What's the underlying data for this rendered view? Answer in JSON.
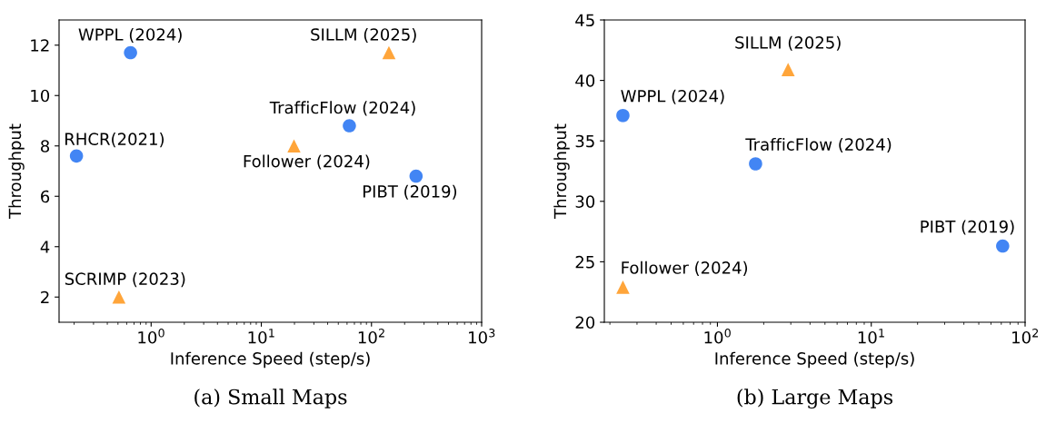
{
  "chart_data": [
    {
      "type": "scatter",
      "title": "(a) Small Maps",
      "xlabel": "Inference Speed (step/s)",
      "ylabel": "Throughput",
      "log": "x",
      "xlim": [
        0.146,
        1000
      ],
      "ylim": [
        1,
        13
      ],
      "xticks": [
        {
          "value": 1,
          "label": "10$^{0}$"
        },
        {
          "value": 10,
          "label": "10$^{1}$"
        },
        {
          "value": 100,
          "label": "10$^{2}$"
        },
        {
          "value": 1000,
          "label": "10$^{3}$"
        }
      ],
      "yticks": [
        2,
        4,
        6,
        8,
        10,
        12
      ],
      "series": [
        {
          "color": "#4285f4",
          "marker": "circle",
          "x": [
            0.21,
            0.65,
            63,
            254
          ],
          "values": [
            7.6,
            11.7,
            8.8,
            6.8
          ]
        },
        {
          "color": "#ffa53a",
          "marker": "triangle",
          "x": [
            0.51,
            19.8,
            144
          ],
          "values": [
            2.0,
            8.0,
            11.7
          ]
        }
      ],
      "annotations": [
        {
          "text": "RHCR(2021)",
          "x": 0.21,
          "y": 7.6
        },
        {
          "text": "WPPL (2024)",
          "x": 0.65,
          "y": 11.7
        },
        {
          "text": "TrafficFlow (2024)",
          "x": 63,
          "y": 8.8
        },
        {
          "text": "PIBT (2019)",
          "x": 254,
          "y": 6.8
        },
        {
          "text": "SCRIMP (2023)",
          "x": 0.51,
          "y": 2.0
        },
        {
          "text": "Follower (2024)",
          "x": 19.8,
          "y": 8.0
        },
        {
          "text": "SILLM (2025)",
          "x": 144,
          "y": 11.7
        }
      ]
    },
    {
      "type": "scatter",
      "title": "(b) Large Maps",
      "xlabel": "Inference Speed (step/s)",
      "ylabel": "Throughput",
      "log": "x",
      "xlim": [
        0.184,
        100
      ],
      "ylim": [
        20,
        45
      ],
      "xticks": [
        {
          "value": 1,
          "label": "10$^{0}$"
        },
        {
          "value": 10,
          "label": "10$^{1}$"
        },
        {
          "value": 100,
          "label": "10$^{2}$"
        }
      ],
      "yticks": [
        20,
        25,
        30,
        35,
        40,
        45
      ],
      "series": [
        {
          "color": "#4285f4",
          "marker": "circle",
          "x": [
            0.243,
            1.77,
            71.5
          ],
          "values": [
            37.1,
            33.1,
            26.3
          ]
        },
        {
          "color": "#ffa53a",
          "marker": "triangle",
          "x": [
            0.243,
            2.88
          ],
          "values": [
            22.9,
            40.9
          ]
        }
      ],
      "annotations": [
        {
          "text": "WPPL (2024)",
          "x": 0.243,
          "y": 37.1
        },
        {
          "text": "TrafficFlow (2024)",
          "x": 1.77,
          "y": 33.1
        },
        {
          "text": "PIBT (2019)",
          "x": 71.5,
          "y": 26.3
        },
        {
          "text": "Follower (2024)",
          "x": 0.243,
          "y": 22.9
        },
        {
          "text": "SILLM (2025)",
          "x": 2.88,
          "y": 40.9
        }
      ]
    }
  ]
}
